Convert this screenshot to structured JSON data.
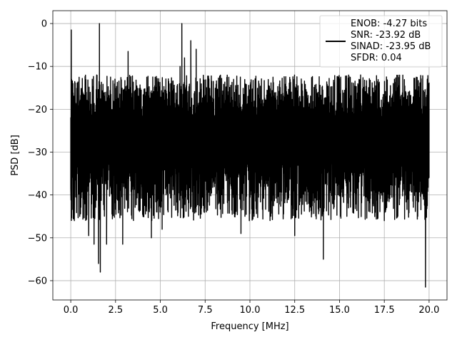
{
  "chart_data": {
    "type": "line",
    "title": "",
    "xlabel": "Frequency [MHz]",
    "ylabel": "PSD [dB]",
    "xlim": [
      -1.0,
      21.0
    ],
    "ylim": [
      -64.5,
      3.0
    ],
    "grid": true,
    "legend_position": "top-right",
    "x_ticks": [
      0.0,
      2.5,
      5.0,
      7.5,
      10.0,
      12.5,
      15.0,
      17.5,
      20.0
    ],
    "x_tick_labels": [
      "0.0",
      "2.5",
      "5.0",
      "7.5",
      "10.0",
      "12.5",
      "15.0",
      "17.5",
      "20.0"
    ],
    "y_ticks": [
      0,
      -10,
      -20,
      -30,
      -40,
      -50,
      -60
    ],
    "y_tick_labels": [
      "0",
      "−10",
      "−20",
      "−30",
      "−40",
      "−50",
      "−60"
    ],
    "series": [
      {
        "name": "",
        "color": "#000000",
        "noise_floor_db": [
          -40,
          -12
        ],
        "x": [
          0.0,
          0.03,
          0.07,
          0.12,
          0.2,
          0.5,
          1.0,
          1.2,
          1.3,
          1.45,
          1.55,
          1.6,
          1.65,
          2.0,
          2.9,
          3.2,
          4.5,
          5.1,
          6.1,
          6.2,
          6.25,
          6.35,
          6.7,
          7.0,
          9.5,
          12.5,
          14.1,
          18.0,
          19.8,
          19.9,
          20.0
        ],
        "y": [
          -38.5,
          -1.5,
          -18.0,
          -14.0,
          -46.0,
          -45.0,
          -49.5,
          -13.0,
          -51.5,
          -12.0,
          -56.0,
          0.0,
          -58.0,
          -51.5,
          -51.5,
          -6.5,
          -50.0,
          -48.0,
          -10.0,
          0.0,
          -40.0,
          -8.0,
          -4.0,
          -6.0,
          -49.0,
          -49.5,
          -55.0,
          -14.0,
          -61.5,
          -13.0,
          -36.0
        ]
      }
    ],
    "legend": [
      "ENOB: -4.27 bits",
      "SNR: -23.92 dB",
      "SINAD: -23.95 dB",
      "SFDR: 0.04"
    ]
  }
}
